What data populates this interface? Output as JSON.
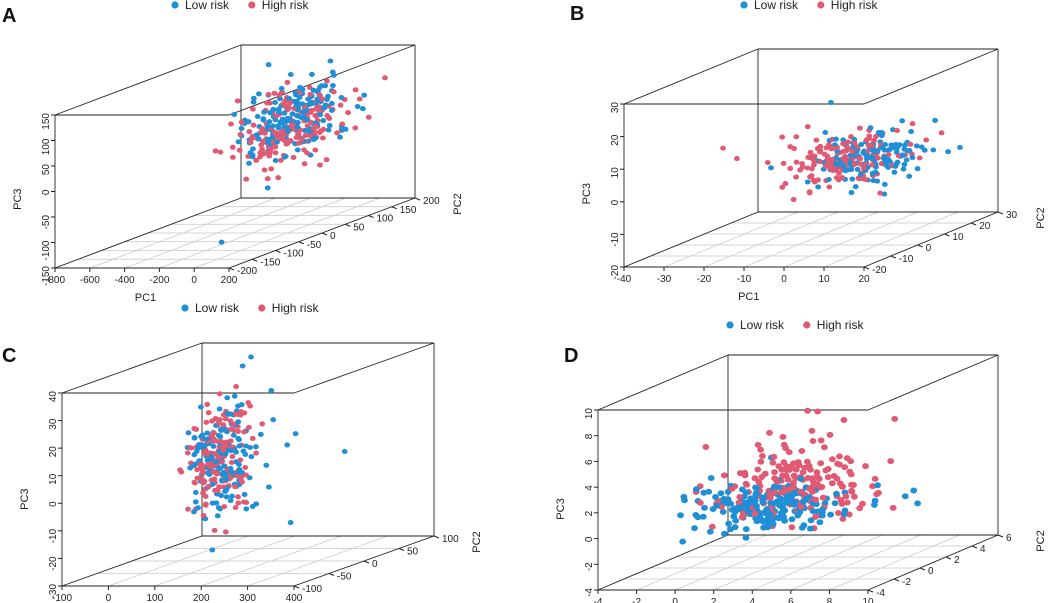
{
  "colors": {
    "low_risk": "#1f8fd6",
    "high_risk": "#e05a73"
  },
  "chart_data": [
    {
      "type": "scatter",
      "panel": "A",
      "title": "",
      "legend": [
        "Low risk",
        "High risk"
      ],
      "xlabel": "PC1",
      "ylabel": "PC2",
      "zlabel": "PC3",
      "xlim": [
        -800,
        200
      ],
      "ylim": [
        -250,
        200
      ],
      "zlim": [
        -150,
        150
      ],
      "x_ticks": [
        "-800",
        "-600",
        "-400",
        "-200",
        "0",
        "200"
      ],
      "y_ticks": [
        "-200",
        "-150",
        "-100",
        "-50",
        "0",
        "50",
        "100",
        "150",
        "200"
      ],
      "z_ticks": [
        "-150",
        "-100",
        "-50",
        "0",
        "50",
        "100",
        "150"
      ],
      "series": [
        {
          "name": "Low risk",
          "n": 170,
          "center": [
            -60,
            20,
            60
          ],
          "spread": [
            70,
            60,
            35
          ],
          "outliers": [
            [
              -380,
              90,
              145
            ],
            [
              -120,
              130,
              140
            ],
            [
              -60,
              60,
              135
            ],
            [
              -80,
              -150,
              -130
            ],
            [
              -100,
              -30,
              -60
            ]
          ]
        },
        {
          "name": "High risk",
          "n": 170,
          "center": [
            -80,
            20,
            50
          ],
          "spread": [
            70,
            60,
            35
          ],
          "outliers": [
            [
              -430,
              20,
              50
            ],
            [
              -300,
              -30,
              0
            ],
            [
              -270,
              0,
              20
            ],
            [
              -200,
              -40,
              -40
            ]
          ]
        }
      ]
    },
    {
      "type": "scatter",
      "panel": "B",
      "title": "",
      "legend": [
        "Low risk",
        "High risk"
      ],
      "xlabel": "PC1",
      "ylabel": "PC2",
      "zlabel": "PC3",
      "xlim": [
        -40,
        20
      ],
      "ylim": [
        -30,
        30
      ],
      "zlim": [
        -20,
        30
      ],
      "x_ticks": [
        "-40",
        "-30",
        "-20",
        "-10",
        "0",
        "10",
        "20"
      ],
      "y_ticks": [
        "-20",
        "-10",
        "0",
        "10",
        "20",
        "30"
      ],
      "z_ticks": [
        "-20",
        "-10",
        "0",
        "10",
        "20",
        "30"
      ],
      "series": [
        {
          "name": "Low risk",
          "n": 150,
          "center": [
            5,
            0,
            5
          ],
          "spread": [
            6,
            8,
            4
          ],
          "outliers": [
            [
              -5,
              0,
              22
            ],
            [
              -12,
              10,
              10
            ],
            [
              -20,
              0,
              2
            ],
            [
              10,
              5,
              15
            ]
          ]
        },
        {
          "name": "High risk",
          "n": 150,
          "center": [
            0,
            -2,
            6
          ],
          "spread": [
            6,
            8,
            4
          ],
          "outliers": [
            [
              -32,
              0,
              8
            ],
            [
              -20,
              5,
              10
            ],
            [
              -18,
              -5,
              5
            ],
            [
              -8,
              -5,
              16
            ]
          ]
        }
      ]
    },
    {
      "type": "scatter",
      "panel": "C",
      "title": "",
      "legend": [
        "Low risk",
        "High risk"
      ],
      "xlabel": "",
      "ylabel": "PC2",
      "zlabel": "PC3",
      "xlim": [
        -100,
        400
      ],
      "ylim": [
        -150,
        100
      ],
      "zlim": [
        -30,
        40
      ],
      "x_ticks": [
        "-100",
        "0",
        "100",
        "200",
        "300",
        "400"
      ],
      "y_ticks": [
        "-100",
        "-50",
        "0",
        "50",
        "100"
      ],
      "z_ticks": [
        "-30",
        "-20",
        "-10",
        "0",
        "10",
        "20",
        "30",
        "40"
      ],
      "series": [
        {
          "name": "Low risk",
          "n": 160,
          "center": [
            60,
            0,
            5
          ],
          "spread": [
            18,
            25,
            9
          ],
          "outliers": [
            [
              170,
              0,
              30
            ],
            [
              150,
              20,
              18
            ],
            [
              150,
              60,
              10
            ],
            [
              280,
              40,
              5
            ],
            [
              260,
              -40,
              -15
            ],
            [
              130,
              0,
              -12
            ],
            [
              90,
              30,
              40
            ],
            [
              60,
              40,
              36
            ]
          ]
        },
        {
          "name": "High risk",
          "n": 160,
          "center": [
            60,
            0,
            5
          ],
          "spread": [
            18,
            25,
            9
          ],
          "outliers": [
            [
              70,
              20,
              30
            ],
            [
              60,
              -10,
              -20
            ],
            [
              60,
              10,
              -22
            ]
          ]
        }
      ]
    },
    {
      "type": "scatter",
      "panel": "D",
      "title": "",
      "legend": [
        "Low risk",
        "High risk"
      ],
      "xlabel": "",
      "ylabel": "PC2",
      "zlabel": "PC3",
      "xlim": [
        -4,
        10
      ],
      "ylim": [
        -6,
        6
      ],
      "zlim": [
        -4,
        10
      ],
      "x_ticks": [
        "-4",
        "-2",
        "0",
        "2",
        "4",
        "6",
        "8",
        "10"
      ],
      "y_ticks": [
        "-4",
        "-2",
        "0",
        "2",
        "4",
        "6"
      ],
      "z_ticks": [
        "-4",
        "-2",
        "0",
        "2",
        "4",
        "6",
        "8",
        "10"
      ],
      "series": [
        {
          "name": "Low risk",
          "n": 190,
          "center": [
            1.5,
            0,
            0.3
          ],
          "spread": [
            1.6,
            1.5,
            0.9
          ],
          "outliers": [
            [
              9,
              0,
              1.6
            ],
            [
              9.2,
              0,
              0.6
            ],
            [
              8,
              1,
              0.8
            ],
            [
              7,
              0,
              0.8
            ],
            [
              6,
              -1,
              0.4
            ]
          ]
        },
        {
          "name": "High risk",
          "n": 170,
          "center": [
            2.5,
            0.5,
            2.0
          ],
          "spread": [
            1.8,
            1.6,
            1.5
          ],
          "outliers": [
            [
              3.5,
              0,
              7.8
            ],
            [
              4.2,
              0,
              5.5
            ],
            [
              6.5,
              0,
              3.5
            ],
            [
              7,
              0,
              2.5
            ],
            [
              8.5,
              -1,
              0.6
            ]
          ]
        }
      ]
    }
  ]
}
